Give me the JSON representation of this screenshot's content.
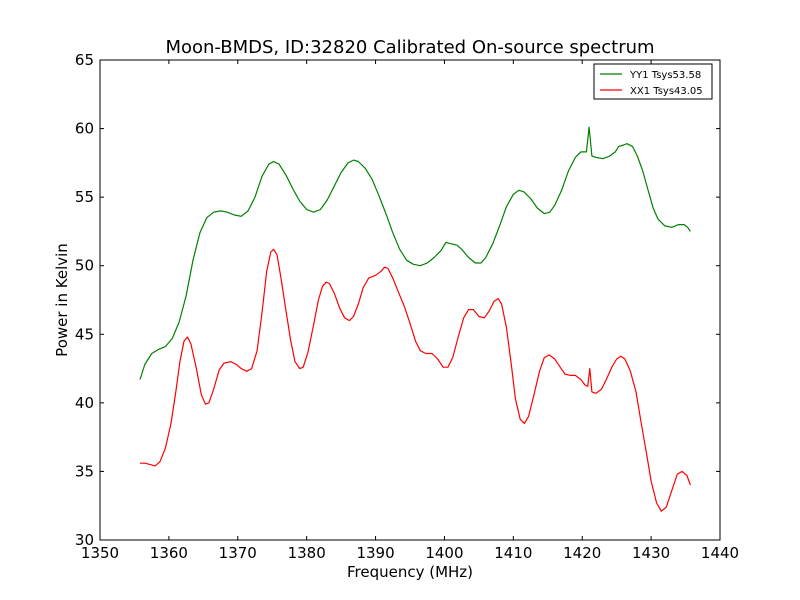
{
  "chart_data": {
    "type": "line",
    "title": "Moon-BMDS, ID:32820 Calibrated On-source spectrum",
    "xlabel": "Frequency (MHz)",
    "ylabel": "Power in Kelvin",
    "xlim": [
      1350,
      1440
    ],
    "ylim": [
      30,
      65
    ],
    "xticks": [
      1350,
      1360,
      1370,
      1380,
      1390,
      1400,
      1410,
      1420,
      1430,
      1440
    ],
    "yticks": [
      30,
      35,
      40,
      45,
      50,
      55,
      60,
      65
    ],
    "grid": false,
    "legend_position": "top-right",
    "series": [
      {
        "name": "YY1 Tsys53.58",
        "color": "#008000",
        "points": [
          [
            1355.8,
            41.7
          ],
          [
            1356.5,
            42.8
          ],
          [
            1357.5,
            43.6
          ],
          [
            1358.5,
            43.9
          ],
          [
            1359.5,
            44.1
          ],
          [
            1360.5,
            44.7
          ],
          [
            1361.5,
            45.9
          ],
          [
            1362.5,
            47.8
          ],
          [
            1363.5,
            50.4
          ],
          [
            1364.5,
            52.4
          ],
          [
            1365.5,
            53.5
          ],
          [
            1366.5,
            53.9
          ],
          [
            1367.5,
            54.0
          ],
          [
            1368.5,
            53.9
          ],
          [
            1369.5,
            53.7
          ],
          [
            1370.5,
            53.6
          ],
          [
            1371.5,
            54.0
          ],
          [
            1372.5,
            55.0
          ],
          [
            1373.5,
            56.5
          ],
          [
            1374.5,
            57.4
          ],
          [
            1375.2,
            57.6
          ],
          [
            1376.0,
            57.4
          ],
          [
            1377.0,
            56.6
          ],
          [
            1378.0,
            55.6
          ],
          [
            1379.0,
            54.7
          ],
          [
            1380.0,
            54.1
          ],
          [
            1381.0,
            53.9
          ],
          [
            1382.0,
            54.1
          ],
          [
            1383.0,
            54.8
          ],
          [
            1384.0,
            55.8
          ],
          [
            1385.0,
            56.8
          ],
          [
            1386.0,
            57.5
          ],
          [
            1386.8,
            57.7
          ],
          [
            1387.5,
            57.6
          ],
          [
            1388.5,
            57.1
          ],
          [
            1389.5,
            56.3
          ],
          [
            1390.5,
            55.1
          ],
          [
            1391.5,
            53.8
          ],
          [
            1392.5,
            52.4
          ],
          [
            1393.5,
            51.2
          ],
          [
            1394.5,
            50.4
          ],
          [
            1395.5,
            50.1
          ],
          [
            1396.5,
            50.0
          ],
          [
            1397.5,
            50.2
          ],
          [
            1398.5,
            50.6
          ],
          [
            1399.5,
            51.1
          ],
          [
            1400.2,
            51.7
          ],
          [
            1401.0,
            51.6
          ],
          [
            1401.8,
            51.5
          ],
          [
            1402.5,
            51.2
          ],
          [
            1403.5,
            50.6
          ],
          [
            1404.5,
            50.2
          ],
          [
            1405.3,
            50.2
          ],
          [
            1406.0,
            50.6
          ],
          [
            1407.0,
            51.6
          ],
          [
            1408.0,
            52.9
          ],
          [
            1409.0,
            54.3
          ],
          [
            1410.0,
            55.2
          ],
          [
            1410.8,
            55.5
          ],
          [
            1411.5,
            55.4
          ],
          [
            1412.5,
            54.9
          ],
          [
            1413.5,
            54.2
          ],
          [
            1414.5,
            53.8
          ],
          [
            1415.3,
            53.9
          ],
          [
            1416.0,
            54.4
          ],
          [
            1417.0,
            55.5
          ],
          [
            1418.0,
            56.9
          ],
          [
            1419.0,
            57.9
          ],
          [
            1419.8,
            58.3
          ],
          [
            1420.6,
            58.3
          ],
          [
            1421.0,
            60.1
          ],
          [
            1421.4,
            58.0
          ],
          [
            1422.0,
            57.9
          ],
          [
            1423.0,
            57.8
          ],
          [
            1424.0,
            58.0
          ],
          [
            1424.8,
            58.3
          ],
          [
            1425.3,
            58.7
          ],
          [
            1426.0,
            58.8
          ],
          [
            1426.5,
            58.9
          ],
          [
            1427.3,
            58.7
          ],
          [
            1428.0,
            58.0
          ],
          [
            1428.8,
            56.9
          ],
          [
            1429.5,
            55.6
          ],
          [
            1430.3,
            54.2
          ],
          [
            1431.0,
            53.4
          ],
          [
            1432.0,
            52.9
          ],
          [
            1433.0,
            52.8
          ],
          [
            1434.0,
            53.0
          ],
          [
            1434.8,
            53.0
          ],
          [
            1435.3,
            52.8
          ],
          [
            1435.7,
            52.5
          ]
        ]
      },
      {
        "name": "XX1 Tsys43.05",
        "color": "#ff0000",
        "points": [
          [
            1355.8,
            35.6
          ],
          [
            1356.5,
            35.6
          ],
          [
            1357.3,
            35.5
          ],
          [
            1358.0,
            35.4
          ],
          [
            1358.7,
            35.7
          ],
          [
            1359.5,
            36.7
          ],
          [
            1360.3,
            38.5
          ],
          [
            1361.0,
            40.8
          ],
          [
            1361.6,
            43.0
          ],
          [
            1362.2,
            44.5
          ],
          [
            1362.7,
            44.8
          ],
          [
            1363.2,
            44.3
          ],
          [
            1364.0,
            42.5
          ],
          [
            1364.7,
            40.6
          ],
          [
            1365.3,
            39.9
          ],
          [
            1365.8,
            40.0
          ],
          [
            1366.5,
            41.0
          ],
          [
            1367.3,
            42.4
          ],
          [
            1368.0,
            42.9
          ],
          [
            1369.0,
            43.0
          ],
          [
            1369.8,
            42.8
          ],
          [
            1370.5,
            42.5
          ],
          [
            1371.3,
            42.3
          ],
          [
            1372.0,
            42.5
          ],
          [
            1372.8,
            43.8
          ],
          [
            1373.5,
            46.5
          ],
          [
            1374.2,
            49.6
          ],
          [
            1374.8,
            51.0
          ],
          [
            1375.2,
            51.2
          ],
          [
            1375.7,
            50.8
          ],
          [
            1376.3,
            49.0
          ],
          [
            1377.0,
            46.7
          ],
          [
            1377.7,
            44.5
          ],
          [
            1378.3,
            43.0
          ],
          [
            1379.0,
            42.5
          ],
          [
            1379.5,
            42.6
          ],
          [
            1380.2,
            43.7
          ],
          [
            1381.0,
            45.7
          ],
          [
            1381.7,
            47.5
          ],
          [
            1382.3,
            48.5
          ],
          [
            1382.8,
            48.8
          ],
          [
            1383.3,
            48.7
          ],
          [
            1384.0,
            48.0
          ],
          [
            1384.8,
            46.9
          ],
          [
            1385.5,
            46.2
          ],
          [
            1386.2,
            46.0
          ],
          [
            1386.8,
            46.3
          ],
          [
            1387.5,
            47.2
          ],
          [
            1388.2,
            48.4
          ],
          [
            1389.0,
            49.1
          ],
          [
            1390.0,
            49.3
          ],
          [
            1390.8,
            49.6
          ],
          [
            1391.3,
            49.9
          ],
          [
            1391.8,
            49.8
          ],
          [
            1392.5,
            49.1
          ],
          [
            1393.3,
            48.1
          ],
          [
            1394.2,
            47.0
          ],
          [
            1395.0,
            45.8
          ],
          [
            1395.8,
            44.5
          ],
          [
            1396.5,
            43.8
          ],
          [
            1397.3,
            43.6
          ],
          [
            1398.2,
            43.6
          ],
          [
            1399.0,
            43.2
          ],
          [
            1399.8,
            42.6
          ],
          [
            1400.5,
            42.6
          ],
          [
            1401.2,
            43.3
          ],
          [
            1402.0,
            44.8
          ],
          [
            1402.8,
            46.2
          ],
          [
            1403.5,
            46.8
          ],
          [
            1404.2,
            46.8
          ],
          [
            1405.0,
            46.3
          ],
          [
            1405.8,
            46.2
          ],
          [
            1406.5,
            46.7
          ],
          [
            1407.2,
            47.4
          ],
          [
            1407.8,
            47.6
          ],
          [
            1408.3,
            47.2
          ],
          [
            1409.0,
            45.5
          ],
          [
            1409.7,
            42.8
          ],
          [
            1410.3,
            40.3
          ],
          [
            1411.0,
            38.8
          ],
          [
            1411.6,
            38.5
          ],
          [
            1412.2,
            39.0
          ],
          [
            1413.0,
            40.6
          ],
          [
            1413.8,
            42.3
          ],
          [
            1414.5,
            43.3
          ],
          [
            1415.2,
            43.5
          ],
          [
            1416.0,
            43.2
          ],
          [
            1416.8,
            42.6
          ],
          [
            1417.5,
            42.1
          ],
          [
            1418.3,
            42.0
          ],
          [
            1419.0,
            42.0
          ],
          [
            1419.8,
            41.7
          ],
          [
            1420.4,
            41.3
          ],
          [
            1420.8,
            41.2
          ],
          [
            1421.1,
            42.5
          ],
          [
            1421.4,
            40.8
          ],
          [
            1422.0,
            40.7
          ],
          [
            1422.8,
            41.0
          ],
          [
            1423.5,
            41.7
          ],
          [
            1424.3,
            42.6
          ],
          [
            1425.0,
            43.2
          ],
          [
            1425.6,
            43.4
          ],
          [
            1426.2,
            43.2
          ],
          [
            1427.0,
            42.3
          ],
          [
            1427.8,
            40.8
          ],
          [
            1428.5,
            38.7
          ],
          [
            1429.3,
            36.4
          ],
          [
            1430.0,
            34.3
          ],
          [
            1430.8,
            32.7
          ],
          [
            1431.5,
            32.1
          ],
          [
            1432.2,
            32.4
          ],
          [
            1433.0,
            33.6
          ],
          [
            1433.8,
            34.8
          ],
          [
            1434.5,
            35.0
          ],
          [
            1435.2,
            34.7
          ],
          [
            1435.7,
            34.0
          ]
        ]
      }
    ]
  }
}
